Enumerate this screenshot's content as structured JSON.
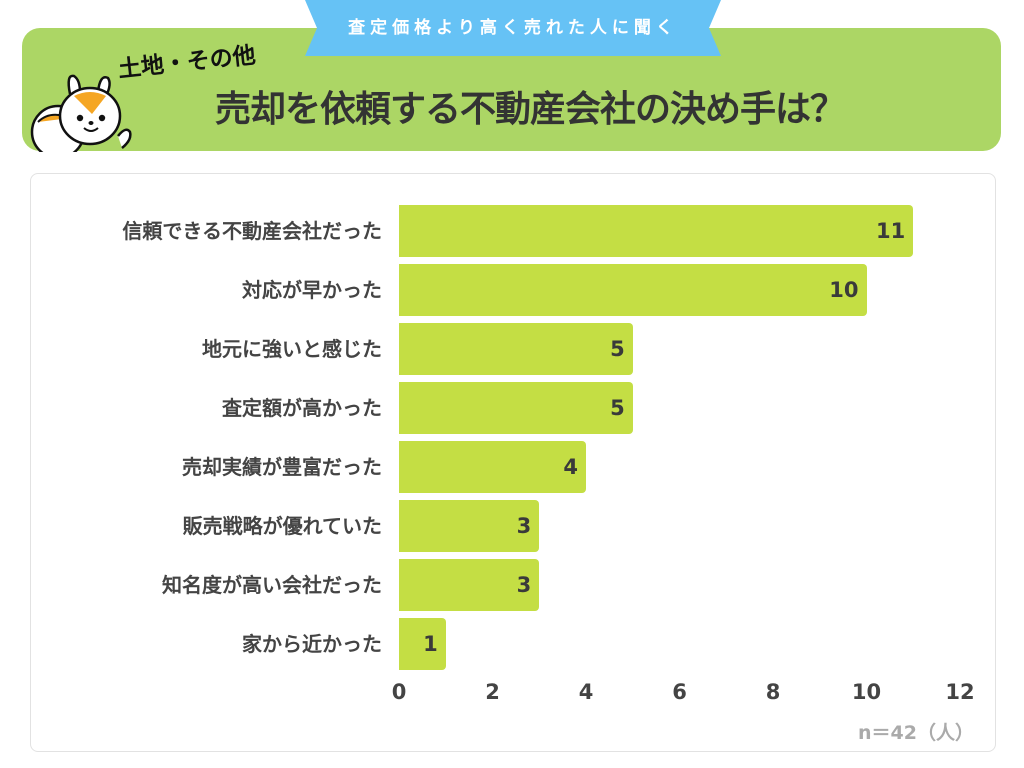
{
  "header": {
    "ribbon_text": "査定価格より高く売れた人に聞く",
    "subtitle": "土地・その他",
    "title": "売却を依頼する不動産会社の決め手は？",
    "colors": {
      "header_bg": "#acd665",
      "ribbon_bg": "#66c2f5",
      "bar": "#c4de44"
    }
  },
  "mascot": {
    "icon": "squirrel-mascot-icon"
  },
  "chart_data": {
    "type": "bar",
    "orientation": "horizontal",
    "title": "売却を依頼する不動産会社の決め手は？",
    "subtitle": "土地・その他 / 査定価格より高く売れた人に聞く",
    "categories": [
      "信頼できる不動産会社だった",
      "対応が早かった",
      "地元に強いと感じた",
      "査定額が高かった",
      "売却実績が豊富だった",
      "販売戦略が優れていた",
      "知名度が高い会社だった",
      "家から近かった"
    ],
    "values": [
      11,
      10,
      5,
      5,
      4,
      3,
      3,
      1
    ],
    "xlabel": "",
    "ylabel": "",
    "xlim": [
      0,
      12
    ],
    "xticks": [
      "0",
      "2",
      "4",
      "6",
      "8",
      "10",
      "12"
    ],
    "grid": false,
    "legend": null,
    "annotation": "n＝42（人）"
  }
}
